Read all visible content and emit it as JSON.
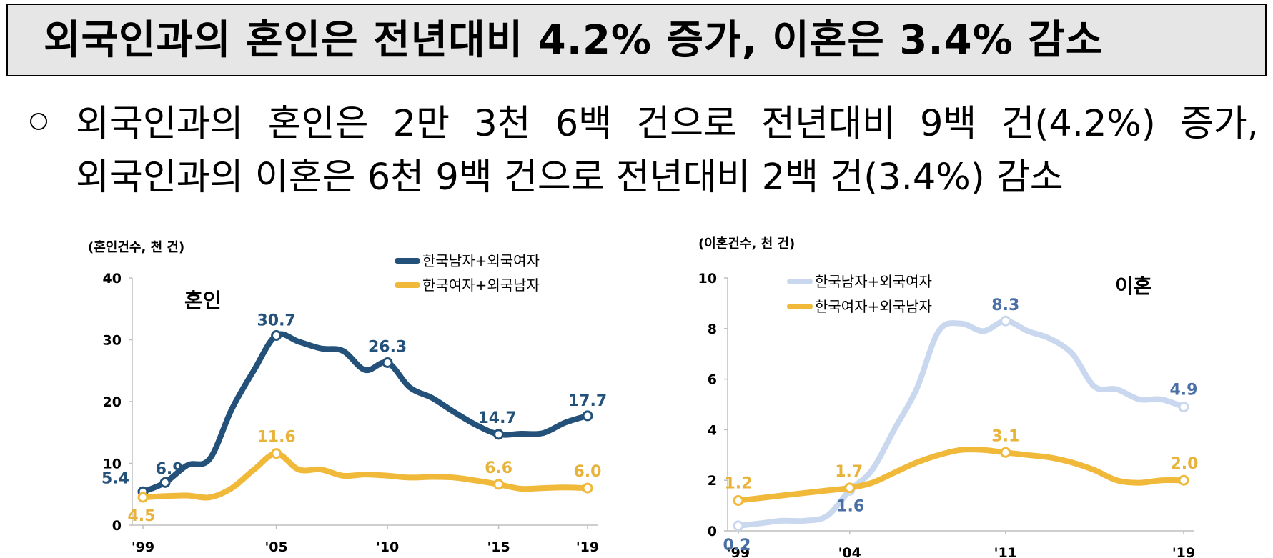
{
  "header": {
    "title": "외국인과의 혼인은 전년대비 4.2% 증가, 이혼은 3.4% 감소"
  },
  "summary": {
    "line1": "외국인과의 혼인은 2만 3천 6백 건으로 전년대비 9백 건(4.2%) 증가,",
    "line2": "외국인과의 이혼은 6천 9백 건으로 전년대비 2백 건(3.4%) 감소"
  },
  "colors": {
    "navy": "#23517a",
    "gold": "#f0b93a",
    "lightblue": "#c9d8ee",
    "label_gold": "#e8b33a",
    "label_blue": "#4a6fa5"
  },
  "chart_data": [
    {
      "type": "line",
      "panel_title": "혼인",
      "unit_label": "(혼인건수, 천 건)",
      "x_tick_labels": [
        "'99",
        "'05",
        "'10",
        "'15",
        "'19"
      ],
      "x_tick_years": [
        1999,
        2005,
        2010,
        2015,
        2019
      ],
      "ylim": [
        0,
        40
      ],
      "y_ticks": [
        0,
        10,
        20,
        30,
        40
      ],
      "legend_position": "top-right",
      "series": [
        {
          "name": "한국남자+외국여자",
          "color": "#23517a",
          "x": [
            1999,
            2000,
            2001,
            2002,
            2003,
            2004,
            2005,
            2006,
            2007,
            2008,
            2009,
            2010,
            2011,
            2012,
            2013,
            2014,
            2015,
            2016,
            2017,
            2018,
            2019
          ],
          "values": [
            5.4,
            6.9,
            9.7,
            10.7,
            18.8,
            25.1,
            30.7,
            29.7,
            28.6,
            28.2,
            25.1,
            26.3,
            22.3,
            20.6,
            18.3,
            16.2,
            14.7,
            14.8,
            14.9,
            16.6,
            17.7
          ],
          "marked_points": [
            {
              "x": 1999,
              "value": 5.4,
              "label": "5.4"
            },
            {
              "x": 2000,
              "value": 6.9,
              "label": "6.9"
            },
            {
              "x": 2005,
              "value": 30.7,
              "label": "30.7"
            },
            {
              "x": 2010,
              "value": 26.3,
              "label": "26.3"
            },
            {
              "x": 2015,
              "value": 14.7,
              "label": "14.7"
            },
            {
              "x": 2019,
              "value": 17.7,
              "label": "17.7"
            }
          ]
        },
        {
          "name": "한국여자+외국남자",
          "color": "#f0b93a",
          "x": [
            1999,
            2000,
            2001,
            2002,
            2003,
            2004,
            2005,
            2006,
            2007,
            2008,
            2009,
            2010,
            2011,
            2012,
            2013,
            2014,
            2015,
            2016,
            2017,
            2018,
            2019
          ],
          "values": [
            4.5,
            4.7,
            4.8,
            4.5,
            6.0,
            9.0,
            11.6,
            9.0,
            9.0,
            8.0,
            8.2,
            8.0,
            7.7,
            7.8,
            7.7,
            7.2,
            6.6,
            5.9,
            6.0,
            6.1,
            6.0
          ],
          "marked_points": [
            {
              "x": 1999,
              "value": 4.5,
              "label": "4.5"
            },
            {
              "x": 2005,
              "value": 11.6,
              "label": "11.6"
            },
            {
              "x": 2015,
              "value": 6.6,
              "label": "6.6"
            },
            {
              "x": 2019,
              "value": 6.0,
              "label": "6.0"
            }
          ]
        }
      ]
    },
    {
      "type": "line",
      "panel_title": "이혼",
      "unit_label": "(이혼건수, 천 건)",
      "x_tick_labels": [
        "'99",
        "'04",
        "'11",
        "'19"
      ],
      "x_tick_years": [
        1999,
        2004,
        2011,
        2019
      ],
      "ylim": [
        0,
        10
      ],
      "y_ticks": [
        0,
        2,
        4,
        6,
        8,
        10
      ],
      "legend_position": "top-left",
      "series": [
        {
          "name": "한국남자+외국여자",
          "color": "#c9d8ee",
          "x": [
            1999,
            2000,
            2001,
            2002,
            2003,
            2004,
            2005,
            2006,
            2007,
            2008,
            2009,
            2010,
            2011,
            2012,
            2013,
            2014,
            2015,
            2016,
            2017,
            2018,
            2019
          ],
          "values": [
            0.2,
            0.3,
            0.4,
            0.4,
            0.6,
            1.6,
            2.4,
            4.0,
            5.6,
            7.9,
            8.2,
            7.9,
            8.3,
            7.9,
            7.6,
            7.0,
            5.7,
            5.6,
            5.2,
            5.2,
            4.9
          ],
          "marked_points": [
            {
              "x": 1999,
              "value": 0.2,
              "label": "0.2"
            },
            {
              "x": 2004,
              "value": 1.6,
              "label": "1.6"
            },
            {
              "x": 2011,
              "value": 8.3,
              "label": "8.3"
            },
            {
              "x": 2019,
              "value": 4.9,
              "label": "4.9"
            }
          ]
        },
        {
          "name": "한국여자+외국남자",
          "color": "#f0b93a",
          "x": [
            1999,
            2000,
            2001,
            2002,
            2003,
            2004,
            2005,
            2006,
            2007,
            2008,
            2009,
            2010,
            2011,
            2012,
            2013,
            2014,
            2015,
            2016,
            2017,
            2018,
            2019
          ],
          "values": [
            1.2,
            1.3,
            1.4,
            1.5,
            1.6,
            1.7,
            1.9,
            2.3,
            2.7,
            3.0,
            3.2,
            3.2,
            3.1,
            3.0,
            2.9,
            2.7,
            2.4,
            2.0,
            1.9,
            2.0,
            2.0
          ],
          "marked_points": [
            {
              "x": 1999,
              "value": 1.2,
              "label": "1.2"
            },
            {
              "x": 2004,
              "value": 1.7,
              "label": "1.7"
            },
            {
              "x": 2011,
              "value": 3.1,
              "label": "3.1"
            },
            {
              "x": 2019,
              "value": 2.0,
              "label": "2.0"
            }
          ]
        }
      ]
    }
  ]
}
